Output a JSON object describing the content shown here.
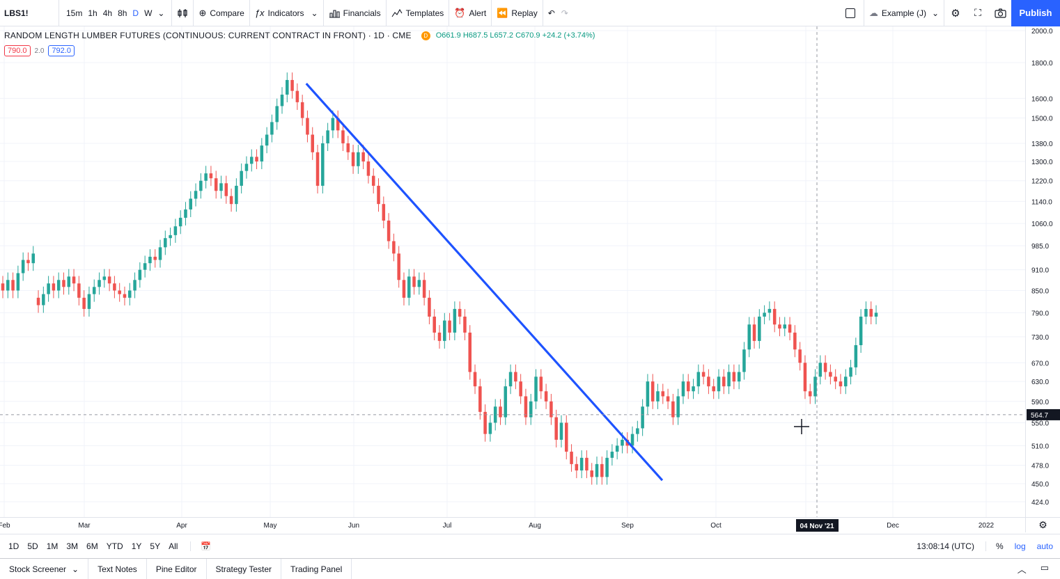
{
  "toolbar": {
    "symbol": "LBS1!",
    "intervals": [
      "15m",
      "1h",
      "4h",
      "8h",
      "D",
      "W"
    ],
    "active_interval": "D",
    "compare_label": "Compare",
    "indicators_label": "Indicators",
    "financials_label": "Financials",
    "templates_label": "Templates",
    "alert_label": "Alert",
    "replay_label": "Replay",
    "layout_label": "Example (J)",
    "publish_label": "Publish"
  },
  "legend": {
    "title": "RANDOM LENGTH LUMBER FUTURES (CONTINUOUS: CURRENT CONTRACT IN FRONT) · 1D · CME",
    "badge": "D",
    "ohlc": "O661.9 H687.5 L657.2 C670.9 +24.2 (+3.74%)",
    "bid": "790.0",
    "spread": "2.0",
    "ask": "792.0"
  },
  "chart_data": {
    "type": "candlestick",
    "price_ticks": [
      "2000.0",
      "1800.0",
      "1600.0",
      "1500.0",
      "1380.0",
      "1300.0",
      "1220.0",
      "1140.0",
      "1060.0",
      "985.0",
      "910.0",
      "850.0",
      "790.0",
      "730.0",
      "670.0",
      "630.0",
      "590.0",
      "550.0",
      "510.0",
      "478.0",
      "450.0",
      "424.0"
    ],
    "time_ticks": [
      "Feb",
      "Mar",
      "Apr",
      "May",
      "Jun",
      "Jul",
      "Aug",
      "Sep",
      "Oct",
      "Dec",
      "2022"
    ],
    "crosshair_price": "564.7",
    "crosshair_date": "04 Nov '21",
    "log_scale": true,
    "trendline": {
      "from": {
        "date": "2021-05-10",
        "price": 1680
      },
      "to": {
        "date": "2021-09-09",
        "price": 455
      },
      "color": "#1e53ff"
    },
    "up_color": "#26a69a",
    "down_color": "#ef5350",
    "candles": [
      {
        "o": 870,
        "c": 850
      },
      {
        "o": 850,
        "c": 880
      },
      {
        "o": 880,
        "c": 850
      },
      {
        "o": 850,
        "c": 900
      },
      {
        "o": 900,
        "c": 940
      },
      {
        "o": 940,
        "c": 930
      },
      {
        "o": 930,
        "c": 960
      },
      {
        "o": 830,
        "c": 810
      },
      {
        "o": 810,
        "c": 840
      },
      {
        "o": 840,
        "c": 870
      },
      {
        "o": 870,
        "c": 850
      },
      {
        "o": 850,
        "c": 880
      },
      {
        "o": 880,
        "c": 860
      },
      {
        "o": 860,
        "c": 890
      },
      {
        "o": 890,
        "c": 870
      },
      {
        "o": 870,
        "c": 830
      },
      {
        "o": 830,
        "c": 800
      },
      {
        "o": 800,
        "c": 840
      },
      {
        "o": 840,
        "c": 860
      },
      {
        "o": 860,
        "c": 880
      },
      {
        "o": 880,
        "c": 890
      },
      {
        "o": 890,
        "c": 870
      },
      {
        "o": 870,
        "c": 850
      },
      {
        "o": 850,
        "c": 840
      },
      {
        "o": 840,
        "c": 830
      },
      {
        "o": 830,
        "c": 850
      },
      {
        "o": 850,
        "c": 880
      },
      {
        "o": 880,
        "c": 910
      },
      {
        "o": 910,
        "c": 930
      },
      {
        "o": 930,
        "c": 950
      },
      {
        "o": 950,
        "c": 940
      },
      {
        "o": 940,
        "c": 980
      },
      {
        "o": 980,
        "c": 1010
      },
      {
        "o": 1010,
        "c": 1020
      },
      {
        "o": 1020,
        "c": 1050
      },
      {
        "o": 1050,
        "c": 1080
      },
      {
        "o": 1080,
        "c": 1110
      },
      {
        "o": 1110,
        "c": 1150
      },
      {
        "o": 1150,
        "c": 1180
      },
      {
        "o": 1180,
        "c": 1220
      },
      {
        "o": 1220,
        "c": 1250
      },
      {
        "o": 1250,
        "c": 1230
      },
      {
        "o": 1230,
        "c": 1180
      },
      {
        "o": 1180,
        "c": 1210
      },
      {
        "o": 1210,
        "c": 1160
      },
      {
        "o": 1160,
        "c": 1130
      },
      {
        "o": 1130,
        "c": 1200
      },
      {
        "o": 1200,
        "c": 1260
      },
      {
        "o": 1260,
        "c": 1290
      },
      {
        "o": 1290,
        "c": 1320
      },
      {
        "o": 1320,
        "c": 1300
      },
      {
        "o": 1300,
        "c": 1370
      },
      {
        "o": 1370,
        "c": 1420
      },
      {
        "o": 1420,
        "c": 1480
      },
      {
        "o": 1480,
        "c": 1560
      },
      {
        "o": 1560,
        "c": 1620
      },
      {
        "o": 1620,
        "c": 1700
      },
      {
        "o": 1700,
        "c": 1640
      },
      {
        "o": 1640,
        "c": 1580
      },
      {
        "o": 1580,
        "c": 1500
      },
      {
        "o": 1500,
        "c": 1420
      },
      {
        "o": 1420,
        "c": 1340
      },
      {
        "o": 1340,
        "c": 1200
      },
      {
        "o": 1200,
        "c": 1380
      },
      {
        "o": 1380,
        "c": 1440
      },
      {
        "o": 1440,
        "c": 1500
      },
      {
        "o": 1500,
        "c": 1440
      },
      {
        "o": 1440,
        "c": 1380
      },
      {
        "o": 1380,
        "c": 1340
      },
      {
        "o": 1340,
        "c": 1280
      },
      {
        "o": 1280,
        "c": 1340
      },
      {
        "o": 1340,
        "c": 1300
      },
      {
        "o": 1300,
        "c": 1240
      },
      {
        "o": 1240,
        "c": 1200
      },
      {
        "o": 1200,
        "c": 1130
      },
      {
        "o": 1130,
        "c": 1070
      },
      {
        "o": 1070,
        "c": 1000
      },
      {
        "o": 1000,
        "c": 960
      },
      {
        "o": 960,
        "c": 880
      },
      {
        "o": 880,
        "c": 830
      },
      {
        "o": 830,
        "c": 890
      },
      {
        "o": 890,
        "c": 860
      },
      {
        "o": 860,
        "c": 880
      },
      {
        "o": 880,
        "c": 830
      },
      {
        "o": 830,
        "c": 780
      },
      {
        "o": 780,
        "c": 740
      },
      {
        "o": 740,
        "c": 720
      },
      {
        "o": 720,
        "c": 770
      },
      {
        "o": 770,
        "c": 740
      },
      {
        "o": 740,
        "c": 800
      },
      {
        "o": 800,
        "c": 780
      },
      {
        "o": 780,
        "c": 740
      },
      {
        "o": 740,
        "c": 650
      },
      {
        "o": 650,
        "c": 620
      },
      {
        "o": 620,
        "c": 570
      },
      {
        "o": 570,
        "c": 530
      },
      {
        "o": 530,
        "c": 550
      },
      {
        "o": 550,
        "c": 580
      },
      {
        "o": 580,
        "c": 560
      },
      {
        "o": 560,
        "c": 620
      },
      {
        "o": 620,
        "c": 650
      },
      {
        "o": 650,
        "c": 630
      },
      {
        "o": 630,
        "c": 600
      },
      {
        "o": 600,
        "c": 560
      },
      {
        "o": 560,
        "c": 590
      },
      {
        "o": 590,
        "c": 640
      },
      {
        "o": 640,
        "c": 610
      },
      {
        "o": 610,
        "c": 590
      },
      {
        "o": 590,
        "c": 560
      },
      {
        "o": 560,
        "c": 520
      },
      {
        "o": 520,
        "c": 550
      },
      {
        "o": 550,
        "c": 500
      },
      {
        "o": 500,
        "c": 480
      },
      {
        "o": 480,
        "c": 470
      },
      {
        "o": 470,
        "c": 490
      },
      {
        "o": 490,
        "c": 470
      },
      {
        "o": 470,
        "c": 460
      },
      {
        "o": 460,
        "c": 480
      },
      {
        "o": 480,
        "c": 460
      },
      {
        "o": 460,
        "c": 490
      },
      {
        "o": 490,
        "c": 500
      },
      {
        "o": 500,
        "c": 510
      },
      {
        "o": 510,
        "c": 520
      },
      {
        "o": 520,
        "c": 510
      },
      {
        "o": 510,
        "c": 530
      },
      {
        "o": 530,
        "c": 540
      },
      {
        "o": 540,
        "c": 580
      },
      {
        "o": 580,
        "c": 630
      },
      {
        "o": 630,
        "c": 590
      },
      {
        "o": 590,
        "c": 610
      },
      {
        "o": 610,
        "c": 600
      },
      {
        "o": 600,
        "c": 590
      },
      {
        "o": 590,
        "c": 560
      },
      {
        "o": 560,
        "c": 600
      },
      {
        "o": 600,
        "c": 630
      },
      {
        "o": 630,
        "c": 610
      },
      {
        "o": 610,
        "c": 620
      },
      {
        "o": 620,
        "c": 650
      },
      {
        "o": 650,
        "c": 640
      },
      {
        "o": 640,
        "c": 620
      },
      {
        "o": 620,
        "c": 610
      },
      {
        "o": 610,
        "c": 640
      },
      {
        "o": 640,
        "c": 620
      },
      {
        "o": 620,
        "c": 650
      },
      {
        "o": 650,
        "c": 630
      },
      {
        "o": 630,
        "c": 650
      },
      {
        "o": 650,
        "c": 700
      },
      {
        "o": 700,
        "c": 760
      },
      {
        "o": 760,
        "c": 720
      },
      {
        "o": 720,
        "c": 780
      },
      {
        "o": 780,
        "c": 790
      },
      {
        "o": 790,
        "c": 800
      },
      {
        "o": 800,
        "c": 760
      },
      {
        "o": 760,
        "c": 750
      },
      {
        "o": 750,
        "c": 760
      },
      {
        "o": 760,
        "c": 740
      },
      {
        "o": 740,
        "c": 700
      },
      {
        "o": 700,
        "c": 670
      },
      {
        "o": 670,
        "c": 610
      },
      {
        "o": 610,
        "c": 600
      },
      {
        "o": 600,
        "c": 640
      },
      {
        "o": 640,
        "c": 670
      },
      {
        "o": 670,
        "c": 650
      },
      {
        "o": 650,
        "c": 640
      },
      {
        "o": 640,
        "c": 630
      },
      {
        "o": 630,
        "c": 620
      },
      {
        "o": 620,
        "c": 640
      },
      {
        "o": 640,
        "c": 660
      },
      {
        "o": 660,
        "c": 710
      },
      {
        "o": 710,
        "c": 780
      },
      {
        "o": 780,
        "c": 800
      },
      {
        "o": 800,
        "c": 780
      },
      {
        "o": 780,
        "c": 790
      }
    ]
  },
  "range_bar": {
    "ranges": [
      "1D",
      "5D",
      "1M",
      "3M",
      "6M",
      "YTD",
      "1Y",
      "5Y",
      "All"
    ],
    "clock": "13:08:14 (UTC)",
    "percent": "%",
    "log": "log",
    "auto": "auto"
  },
  "bottom_tabs": [
    "Stock Screener",
    "Text Notes",
    "Pine Editor",
    "Strategy Tester",
    "Trading Panel"
  ]
}
